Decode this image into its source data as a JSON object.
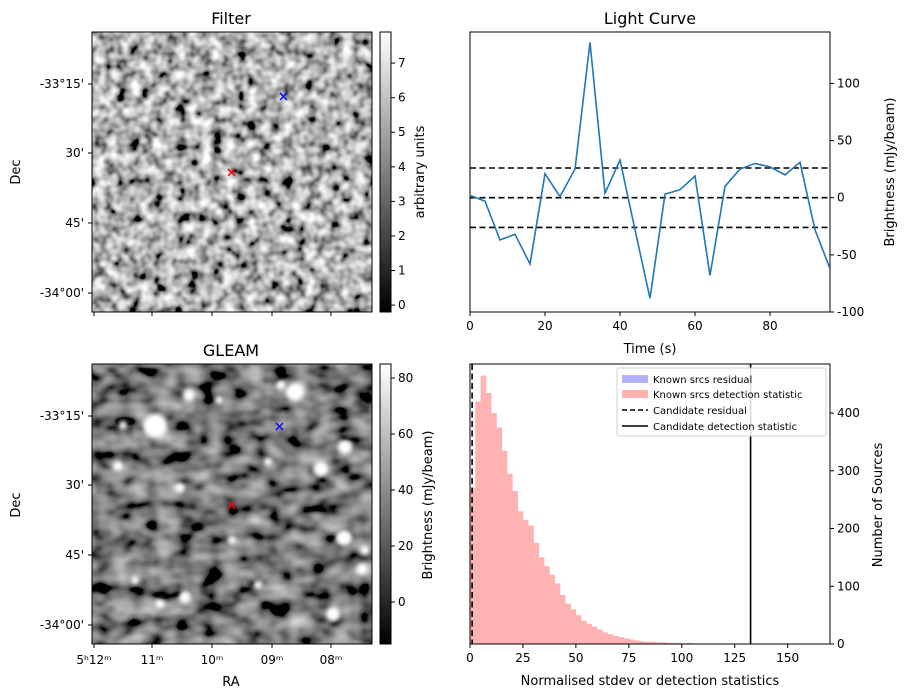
{
  "chart_data": [
    {
      "type": "heatmap",
      "title": "Filter",
      "xlabel": "",
      "ylabel": "Dec",
      "y_ticks": [
        "-33°15'",
        "30'",
        "45'",
        "-34°00'"
      ],
      "colorbar": {
        "label": "arbitrary units",
        "range": [
          -0.2,
          7.9
        ],
        "ticks": [
          "0",
          "1",
          "2",
          "3",
          "4",
          "5",
          "6",
          "7"
        ]
      },
      "markers": [
        {
          "name": "red-x",
          "color": "#ff0000"
        },
        {
          "name": "blue-x",
          "color": "#0000ff"
        }
      ],
      "colormap": "gray"
    },
    {
      "type": "line",
      "title": "Light Curve",
      "xlabel": "Time (s)",
      "ylabel": "Brightness (mJy/beam)",
      "xlim": [
        0,
        96
      ],
      "ylim": [
        -100,
        145
      ],
      "x_ticks": [
        0,
        20,
        40,
        60,
        80
      ],
      "y_ticks": [
        -100,
        -50,
        0,
        50,
        100
      ],
      "x": [
        0,
        4,
        8,
        12,
        16,
        20,
        24,
        28,
        32,
        36,
        40,
        44,
        48,
        52,
        56,
        60,
        64,
        68,
        72,
        76,
        80,
        84,
        88,
        92,
        96
      ],
      "values": [
        2,
        -3,
        -37,
        -32,
        -58,
        21,
        1,
        25,
        136,
        4,
        33,
        -28,
        -88,
        3,
        7,
        19,
        -68,
        10,
        25,
        30,
        27,
        20,
        31,
        -28,
        -62
      ],
      "hlines": [
        26,
        0,
        -26
      ],
      "color": "#1f77b4"
    },
    {
      "type": "heatmap",
      "title": "GLEAM",
      "xlabel": "RA",
      "ylabel": "Dec",
      "x_ticks": [
        "5ʰ12ᵐ",
        "11ᵐ",
        "10ᵐ",
        "09ᵐ",
        "08ᵐ"
      ],
      "y_ticks": [
        "-33°15'",
        "30'",
        "45'",
        "-34°00'"
      ],
      "colorbar": {
        "label": "Brightness (mJy/beam)",
        "range": [
          -15,
          85
        ],
        "ticks": [
          "0",
          "20",
          "40",
          "60",
          "80"
        ]
      },
      "markers": [
        {
          "name": "red-x",
          "color": "#ff0000"
        },
        {
          "name": "blue-x",
          "color": "#0000ff"
        }
      ],
      "colormap": "gray"
    },
    {
      "type": "bar",
      "xlabel": "Normalised stdev or detection statistics",
      "ylabel": "Number of Sources",
      "xlim": [
        0,
        170
      ],
      "ylim": [
        0,
        485
      ],
      "x_ticks": [
        0,
        25,
        50,
        75,
        100,
        125,
        150
      ],
      "y_ticks": [
        0,
        100,
        200,
        300,
        400
      ],
      "bin_width": 2.5,
      "series": [
        {
          "name": "Known srcs residual",
          "color": "#b2b2ff",
          "values": []
        },
        {
          "name": "Known srcs detection statistic",
          "color": "#ffb2b2",
          "bin_start": 0,
          "values": [
            270,
            420,
            465,
            435,
            400,
            375,
            335,
            295,
            265,
            230,
            215,
            205,
            175,
            150,
            135,
            120,
            105,
            85,
            70,
            60,
            50,
            40,
            35,
            30,
            25,
            20,
            17,
            14,
            12,
            10,
            8,
            6,
            5,
            4,
            4,
            3,
            3,
            2,
            2,
            2,
            1,
            2,
            1,
            1,
            1,
            1,
            1,
            1,
            0,
            0,
            0,
            0,
            0,
            0,
            0,
            0,
            1,
            1,
            0,
            1,
            0,
            0,
            0,
            0,
            0,
            0
          ]
        }
      ],
      "vlines": [
        {
          "name": "Candidate residual",
          "x": 1.0,
          "style": "dashed"
        },
        {
          "name": "Candidate detection statistic",
          "x": 132.5,
          "style": "solid"
        }
      ],
      "legend": "top-right"
    }
  ]
}
